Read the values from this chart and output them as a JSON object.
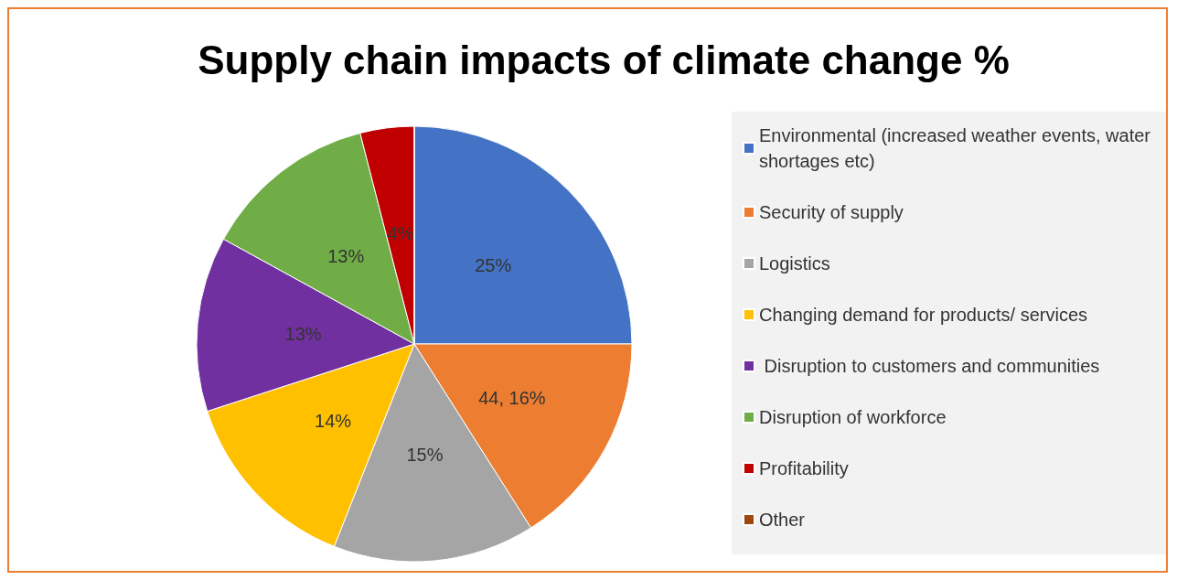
{
  "chart_data": {
    "type": "pie",
    "title": "Supply chain impacts of climate change %",
    "categories": [
      "Environmental (increased weather events, water shortages etc)",
      "Security of supply",
      "Logistics",
      "Changing demand for products/ services",
      " Disruption to customers and communities",
      "Disruption of workforce",
      "Profitability",
      "Other"
    ],
    "values": [
      25,
      16,
      15,
      14,
      13,
      13,
      4,
      0
    ],
    "value_labels": [
      "25%",
      "44, 16%",
      "15%",
      "14%",
      "13%",
      "13%",
      "4%",
      null
    ],
    "colors": [
      "#4472c4",
      "#ed7d31",
      "#a5a5a5",
      "#ffc000",
      "#7030a0",
      "#70ad47",
      "#c00000",
      "#9e480e"
    ],
    "legend": "right"
  }
}
